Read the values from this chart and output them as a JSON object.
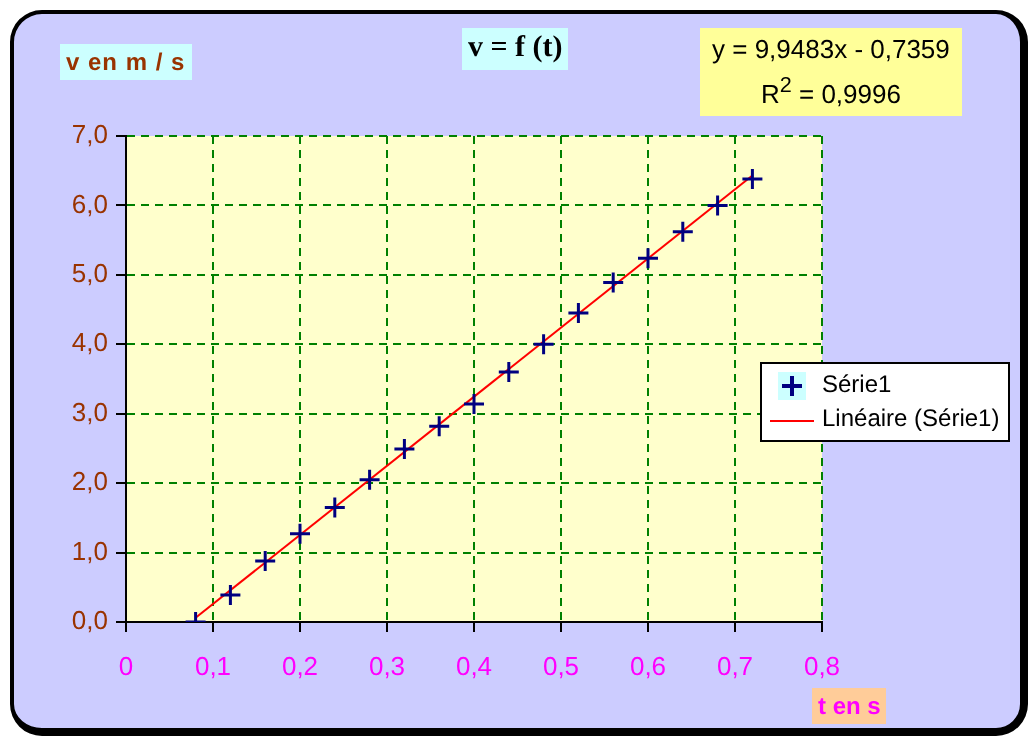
{
  "chart_data": {
    "type": "scatter",
    "title": "v = f (t)",
    "ylabel": "v en m / s",
    "xlabel": "t en s",
    "annotations": [
      "y = 9,9483x - 0,7359",
      "R$^{2}$ = 0,9996"
    ],
    "x": [
      0.08,
      0.12,
      0.16,
      0.2,
      0.24,
      0.28,
      0.32,
      0.36,
      0.4,
      0.44,
      0.48,
      0.52,
      0.56,
      0.6,
      0.64,
      0.68,
      0.72
    ],
    "series": [
      {
        "name": "Série1",
        "color": "#000080",
        "marker": "cross",
        "values": [
          0.0,
          0.39,
          0.88,
          1.27,
          1.65,
          2.05,
          2.49,
          2.82,
          3.14,
          3.6,
          4.0,
          4.45,
          4.89,
          5.24,
          5.62,
          6.0,
          6.38
        ]
      },
      {
        "name": "Linéaire (Série1)",
        "type": "line",
        "color": "#ff0000",
        "marker": "none",
        "x": [
          0.08,
          0.72
        ],
        "values": [
          0.06,
          6.43
        ]
      }
    ],
    "xlim": [
      0,
      0.8
    ],
    "xticks": [
      0,
      {
        "value": 0.1,
        "label": "0,1"
      },
      {
        "value": 0.2,
        "label": "0,2"
      },
      {
        "value": 0.3,
        "label": "0,3"
      },
      {
        "value": 0.4,
        "label": "0,4"
      },
      {
        "value": 0.5,
        "label": "0,5"
      },
      {
        "value": 0.6,
        "label": "0,6"
      },
      {
        "value": 0.7,
        "label": "0,7"
      },
      {
        "value": 0.8,
        "label": "0,8"
      }
    ],
    "ylim": [
      0,
      7
    ],
    "yticks": [
      {
        "value": 0,
        "label": "0,0"
      },
      {
        "value": 1,
        "label": "1,0"
      },
      {
        "value": 2,
        "label": "2,0"
      },
      {
        "value": 3,
        "label": "3,0"
      },
      {
        "value": 4,
        "label": "4,0"
      },
      {
        "value": 5,
        "label": "5,0"
      },
      {
        "value": 6,
        "label": "6,0"
      },
      {
        "value": 7,
        "label": "7,0"
      }
    ],
    "grid": true,
    "legend": "right"
  }
}
